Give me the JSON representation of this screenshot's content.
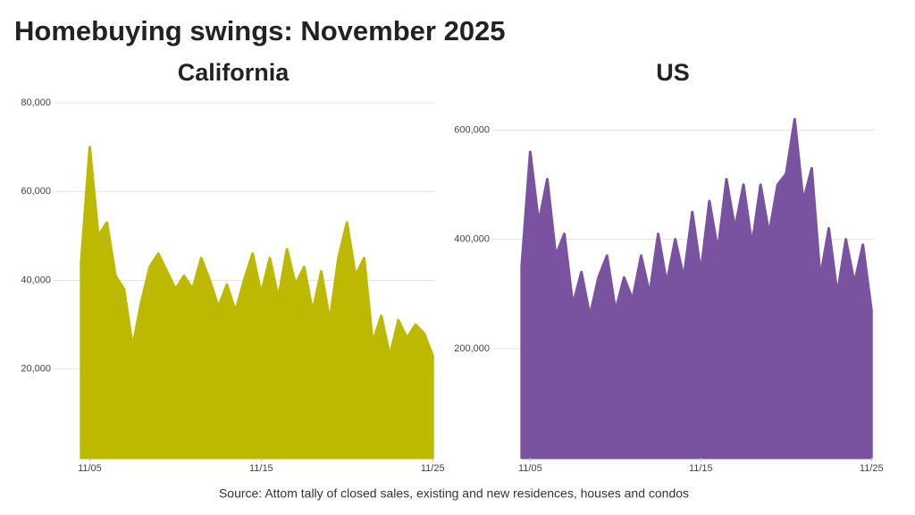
{
  "title": "Homebuying swings: November 2025",
  "source": "Source: Attom tally of closed sales, existing and new residences, houses and condos",
  "chart_data": [
    {
      "type": "area",
      "title": "California",
      "color": "#bdb800",
      "grid": true,
      "x": [
        4.5,
        5.0,
        5.5,
        6.0,
        6.5,
        7.0,
        7.5,
        8.0,
        8.5,
        9.0,
        9.5,
        10.0,
        10.5,
        11.0,
        11.5,
        12.0,
        12.5,
        13.0,
        13.5,
        14.0,
        14.5,
        15.0,
        15.5,
        16.0,
        16.5,
        17.0,
        17.5,
        18.0,
        18.5,
        19.0,
        19.5,
        20.0,
        20.5,
        21.0,
        21.5,
        22.0,
        22.5,
        23.0,
        23.5,
        24.0,
        24.5,
        25.0
      ],
      "values": [
        44000,
        70000,
        50000,
        53000,
        41000,
        38000,
        25000,
        35000,
        43000,
        46000,
        42000,
        38000,
        41000,
        38000,
        45000,
        40000,
        34000,
        39000,
        33000,
        40000,
        46000,
        37000,
        45000,
        36000,
        47000,
        39000,
        43000,
        33000,
        42000,
        31000,
        45000,
        53000,
        41000,
        45000,
        26000,
        32000,
        23000,
        31000,
        27000,
        30000,
        28000,
        23000
      ],
      "xlim": [
        4.3,
        25.3
      ],
      "xticks": [
        {
          "value": 5,
          "label": "11/05"
        },
        {
          "value": 15,
          "label": "11/15"
        },
        {
          "value": 25,
          "label": "11/25"
        }
      ],
      "ylim": [
        0,
        80000
      ],
      "yticks": [
        {
          "value": 20000,
          "label": "20,000"
        },
        {
          "value": 40000,
          "label": "40,000"
        },
        {
          "value": 60000,
          "label": "60,000"
        },
        {
          "value": 80000,
          "label": "80,000"
        }
      ]
    },
    {
      "type": "area",
      "title": "US",
      "color": "#7952a0",
      "grid": true,
      "x": [
        4.5,
        5.0,
        5.5,
        6.0,
        6.5,
        7.0,
        7.5,
        8.0,
        8.5,
        9.0,
        9.5,
        10.0,
        10.5,
        11.0,
        11.5,
        12.0,
        12.5,
        13.0,
        13.5,
        14.0,
        14.5,
        15.0,
        15.5,
        16.0,
        16.5,
        17.0,
        17.5,
        18.0,
        18.5,
        19.0,
        19.5,
        20.0,
        20.5,
        21.0,
        21.5,
        22.0,
        22.5,
        23.0,
        23.5,
        24.0,
        24.5,
        25.0
      ],
      "values": [
        350000,
        560000,
        430000,
        510000,
        370000,
        410000,
        280000,
        340000,
        260000,
        330000,
        370000,
        270000,
        330000,
        290000,
        370000,
        300000,
        410000,
        320000,
        400000,
        330000,
        450000,
        340000,
        470000,
        380000,
        510000,
        420000,
        500000,
        390000,
        500000,
        410000,
        500000,
        520000,
        620000,
        470000,
        530000,
        330000,
        420000,
        300000,
        400000,
        320000,
        390000,
        270000
      ],
      "xlim": [
        4.3,
        25.3
      ],
      "xticks": [
        {
          "value": 5,
          "label": "11/05"
        },
        {
          "value": 15,
          "label": "11/15"
        },
        {
          "value": 25,
          "label": "11/25"
        }
      ],
      "ylim": [
        0,
        650000
      ],
      "yticks": [
        {
          "value": 200000,
          "label": "200,000"
        },
        {
          "value": 400000,
          "label": "400,000"
        },
        {
          "value": 600000,
          "label": "600,000"
        }
      ]
    }
  ]
}
